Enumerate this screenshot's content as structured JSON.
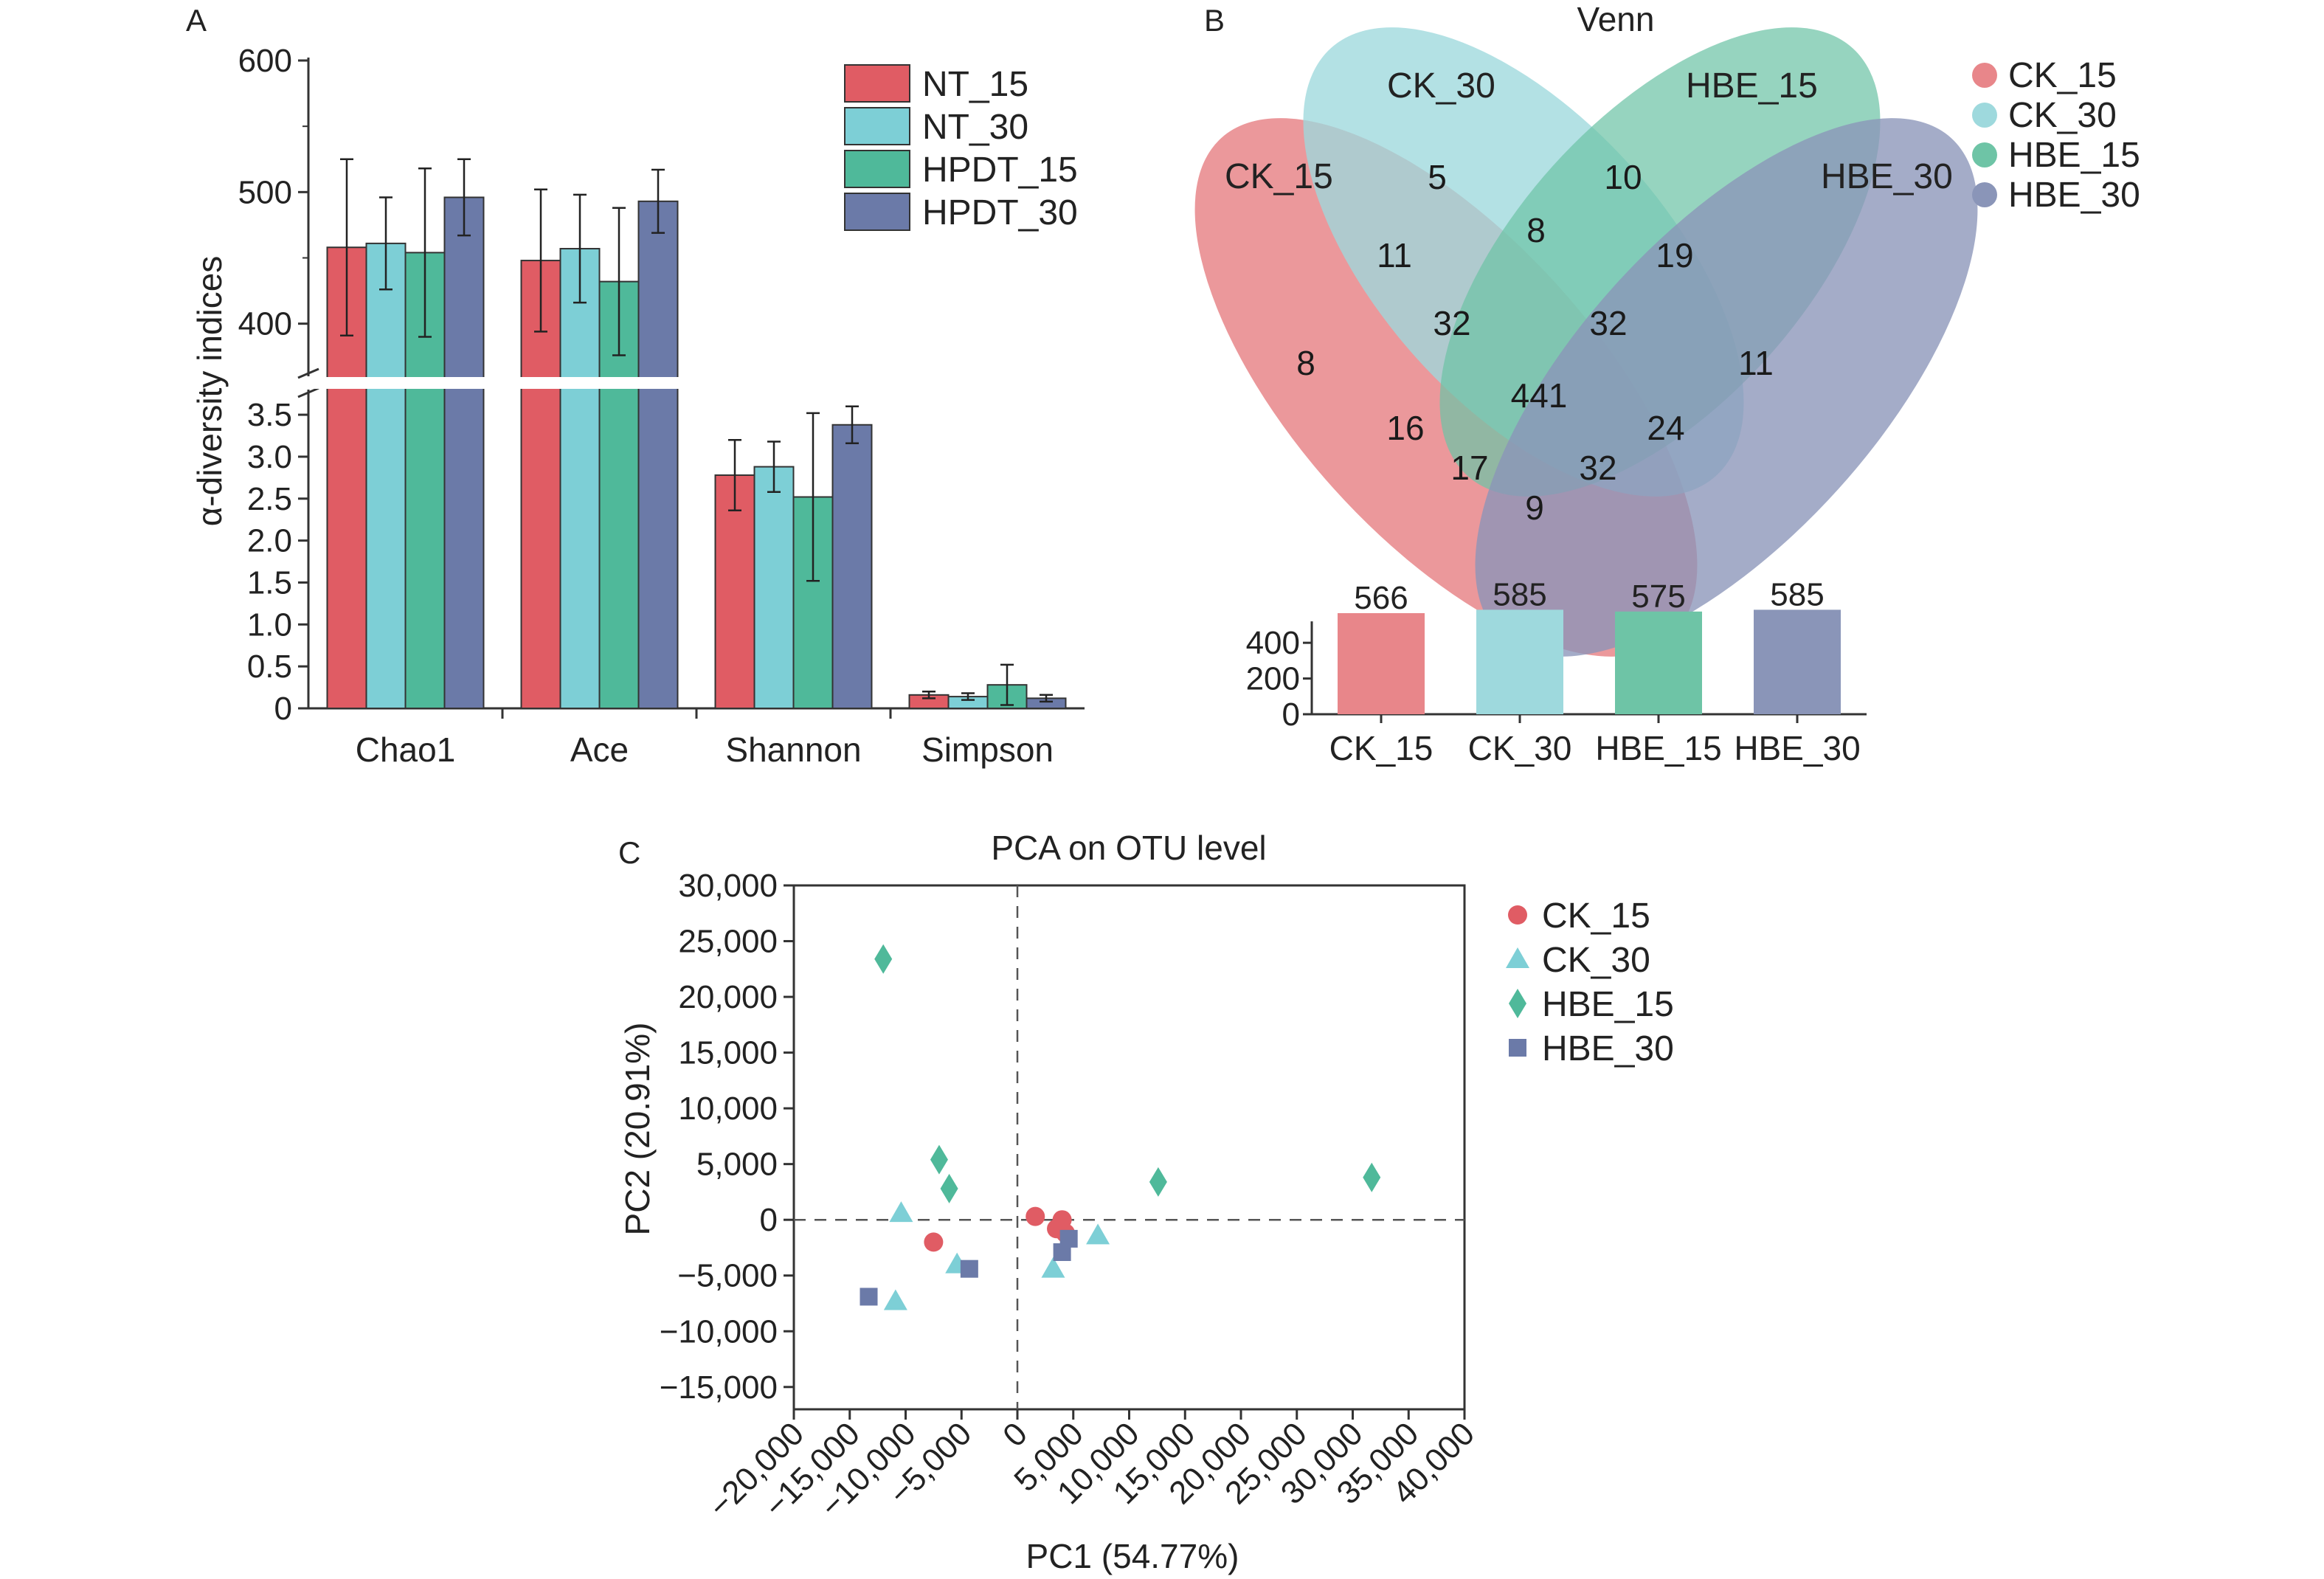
{
  "panels": {
    "a": {
      "label": "A"
    },
    "b": {
      "label": "B",
      "title": "Venn"
    },
    "c": {
      "label": "C"
    }
  },
  "chart_data": [
    {
      "type": "bar",
      "panel": "A",
      "ylabel": "α-diversity indices",
      "categories": [
        "Chao1",
        "Ace",
        "Shannon",
        "Simpson"
      ],
      "axis_break": true,
      "ylim_lower": [
        0,
        3.8
      ],
      "ylim_upper": [
        360,
        600
      ],
      "yticks_lower": [
        "0",
        "0.5",
        "1.0",
        "1.5",
        "2.0",
        "2.5",
        "3.0",
        "3.5"
      ],
      "yticks_upper": [
        "400",
        "500",
        "600"
      ],
      "colors": [
        "#e05c64",
        "#7dcfd6",
        "#4fb99a",
        "#6b7aa8"
      ],
      "legend_position": "top-right",
      "series": [
        {
          "name": "NT_15",
          "values": [
            458,
            448,
            2.78,
            0.16
          ],
          "errors": [
            67,
            54,
            0.42,
            0.04
          ]
        },
        {
          "name": "NT_30",
          "values": [
            461,
            457,
            2.88,
            0.14
          ],
          "errors": [
            35,
            41,
            0.3,
            0.04
          ]
        },
        {
          "name": "HPDT_15",
          "values": [
            454,
            432,
            2.52,
            0.28
          ],
          "errors": [
            64,
            56,
            1.0,
            0.24
          ]
        },
        {
          "name": "HPDT_30",
          "values": [
            496,
            493,
            3.38,
            0.12
          ],
          "errors": [
            29,
            24,
            0.22,
            0.04
          ]
        }
      ]
    },
    {
      "type": "venn",
      "panel": "B",
      "title": "Venn",
      "sets": [
        "CK_15",
        "CK_30",
        "HBE_15",
        "HBE_30"
      ],
      "colors": [
        "#e8868a",
        "#9ed9dd",
        "#6ec4a6",
        "#8a95b8"
      ],
      "legend_position": "top-right",
      "regions": [
        {
          "sets": [
            "CK_15"
          ],
          "count": 8
        },
        {
          "sets": [
            "CK_30"
          ],
          "count": 5
        },
        {
          "sets": [
            "HBE_15"
          ],
          "count": 10
        },
        {
          "sets": [
            "HBE_30"
          ],
          "count": 11
        },
        {
          "sets": [
            "CK_15",
            "CK_30"
          ],
          "count": 11
        },
        {
          "sets": [
            "CK_30",
            "HBE_15"
          ],
          "count": 8
        },
        {
          "sets": [
            "HBE_15",
            "HBE_30"
          ],
          "count": 19
        },
        {
          "sets": [
            "CK_15",
            "CK_30",
            "HBE_15"
          ],
          "count": 32
        },
        {
          "sets": [
            "CK_30",
            "HBE_15",
            "HBE_30"
          ],
          "count": 32
        },
        {
          "sets": [
            "CK_15",
            "CK_30",
            "HBE_15",
            "HBE_30"
          ],
          "count": 441
        },
        {
          "sets": [
            "CK_15",
            "HBE_15"
          ],
          "count": 16
        },
        {
          "sets": [
            "CK_30",
            "HBE_30"
          ],
          "count": 24
        },
        {
          "sets": [
            "CK_15",
            "HBE_15",
            "HBE_30"
          ],
          "count": 17
        },
        {
          "sets": [
            "CK_15",
            "CK_30",
            "HBE_30"
          ],
          "count": 32
        },
        {
          "sets": [
            "CK_15",
            "HBE_30"
          ],
          "count": 9
        }
      ],
      "set_sizes": {
        "categories": [
          "CK_15",
          "CK_30",
          "HBE_15",
          "HBE_30"
        ],
        "values": [
          566,
          585,
          575,
          585
        ],
        "yticks": [
          "0",
          "200",
          "400"
        ],
        "ylim": [
          0,
          600
        ]
      }
    },
    {
      "type": "scatter",
      "panel": "C",
      "title": "PCA on OTU level",
      "xlabel": "PC1 (54.77%)",
      "ylabel": "PC2 (20.91%)",
      "xlim": [
        -20000,
        40000
      ],
      "ylim": [
        -17000,
        30000
      ],
      "xticks": [
        "−20,000",
        "−15,000",
        "−10,000",
        "−5,000",
        "0",
        "5,000",
        "10,000",
        "15,000",
        "20,000",
        "25,000",
        "30,000",
        "35,000",
        "40,000"
      ],
      "yticks": [
        "30,000",
        "25,000",
        "20,000",
        "15,000",
        "10,000",
        "5,000",
        "0",
        "−5,000",
        "−10,000",
        "−15,000"
      ],
      "reference_lines": {
        "x": 0,
        "y": 0,
        "style": "dashed"
      },
      "legend_position": "right",
      "series": [
        {
          "name": "CK_15",
          "marker": "circle",
          "color": "#e05c64",
          "points": [
            [
              -7500,
              -2000
            ],
            [
              1600,
              300
            ],
            [
              3500,
              -800
            ],
            [
              4000,
              0
            ],
            [
              4300,
              -1200
            ]
          ]
        },
        {
          "name": "CK_30",
          "marker": "triangle",
          "color": "#7dcfd6",
          "points": [
            [
              -10400,
              600
            ],
            [
              -5400,
              -4000
            ],
            [
              -10900,
              -7300
            ],
            [
              3200,
              -4400
            ],
            [
              7200,
              -1400
            ]
          ]
        },
        {
          "name": "HBE_15",
          "marker": "diamond",
          "color": "#4fb99a",
          "points": [
            [
              -12000,
              23400
            ],
            [
              -7000,
              5400
            ],
            [
              -6100,
              2800
            ],
            [
              12600,
              3400
            ],
            [
              31700,
              3800
            ]
          ]
        },
        {
          "name": "HBE_30",
          "marker": "square",
          "color": "#6b7aa8",
          "points": [
            [
              -13300,
              -6900
            ],
            [
              -4300,
              -4400
            ],
            [
              4600,
              -1700
            ],
            [
              4000,
              -2900
            ]
          ]
        }
      ]
    }
  ]
}
